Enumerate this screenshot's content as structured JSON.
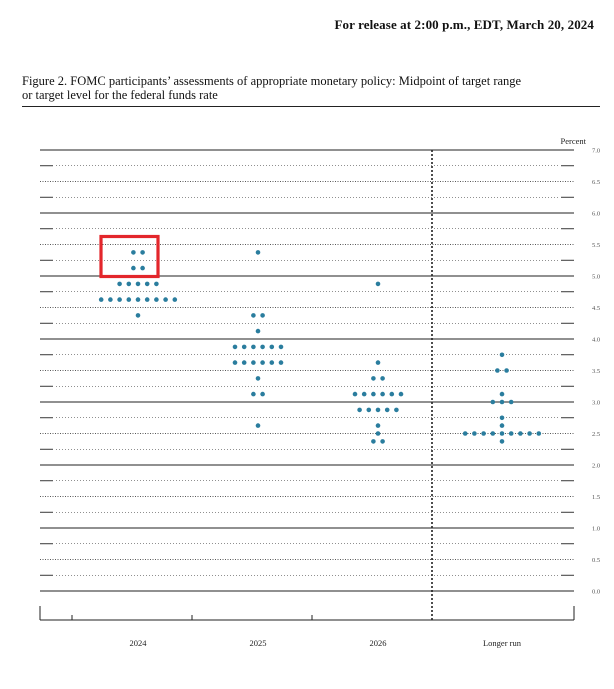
{
  "header": {
    "release_text": "For release at 2:00 p.m., EDT, March 20, 2024"
  },
  "figure": {
    "caption_line1": "Figure 2.  FOMC participants’ assessments of appropriate monetary policy: Midpoint of target range",
    "caption_line2": "or target level for the federal funds rate"
  },
  "colors": {
    "dot": "#2a7d9e",
    "highlight": "#e3262b",
    "line": "#222222"
  },
  "chart_data": {
    "type": "scatter",
    "unit_label": "Percent",
    "ylim": [
      0,
      7
    ],
    "y_ticks": [
      "0.0",
      "0.5",
      "1.0",
      "1.5",
      "2.0",
      "2.5",
      "3.0",
      "3.5",
      "4.0",
      "4.5",
      "5.0",
      "5.5",
      "6.0",
      "6.5",
      "7.0"
    ],
    "categories": [
      "2024",
      "2025",
      "2026",
      "Longer run"
    ],
    "series": [
      {
        "category": "2024",
        "points": [
          {
            "y": 5.375,
            "count": 2
          },
          {
            "y": 5.125,
            "count": 2
          },
          {
            "y": 4.875,
            "count": 5
          },
          {
            "y": 4.625,
            "count": 9
          },
          {
            "y": 4.375,
            "count": 1
          }
        ]
      },
      {
        "category": "2025",
        "points": [
          {
            "y": 5.375,
            "count": 1
          },
          {
            "y": 4.375,
            "count": 2
          },
          {
            "y": 4.125,
            "count": 1
          },
          {
            "y": 3.875,
            "count": 6
          },
          {
            "y": 3.625,
            "count": 6
          },
          {
            "y": 3.375,
            "count": 1
          },
          {
            "y": 3.125,
            "count": 2
          },
          {
            "y": 2.625,
            "count": 1
          }
        ]
      },
      {
        "category": "2026",
        "points": [
          {
            "y": 4.875,
            "count": 1
          },
          {
            "y": 3.625,
            "count": 1
          },
          {
            "y": 3.375,
            "count": 2
          },
          {
            "y": 3.125,
            "count": 6
          },
          {
            "y": 2.875,
            "count": 5
          },
          {
            "y": 2.625,
            "count": 1
          },
          {
            "y": 2.5,
            "count": 1
          },
          {
            "y": 2.375,
            "count": 2
          }
        ]
      },
      {
        "category": "Longer run",
        "points": [
          {
            "y": 3.75,
            "count": 1
          },
          {
            "y": 3.5,
            "count": 2
          },
          {
            "y": 3.125,
            "count": 1
          },
          {
            "y": 3.0,
            "count": 3
          },
          {
            "y": 2.75,
            "count": 1
          },
          {
            "y": 2.625,
            "count": 1
          },
          {
            "y": 2.5,
            "count": 9
          },
          {
            "y": 2.375,
            "count": 1
          }
        ]
      }
    ],
    "highlight": {
      "category": "2024",
      "y_range": [
        5.0,
        5.5
      ]
    },
    "grid": true
  }
}
